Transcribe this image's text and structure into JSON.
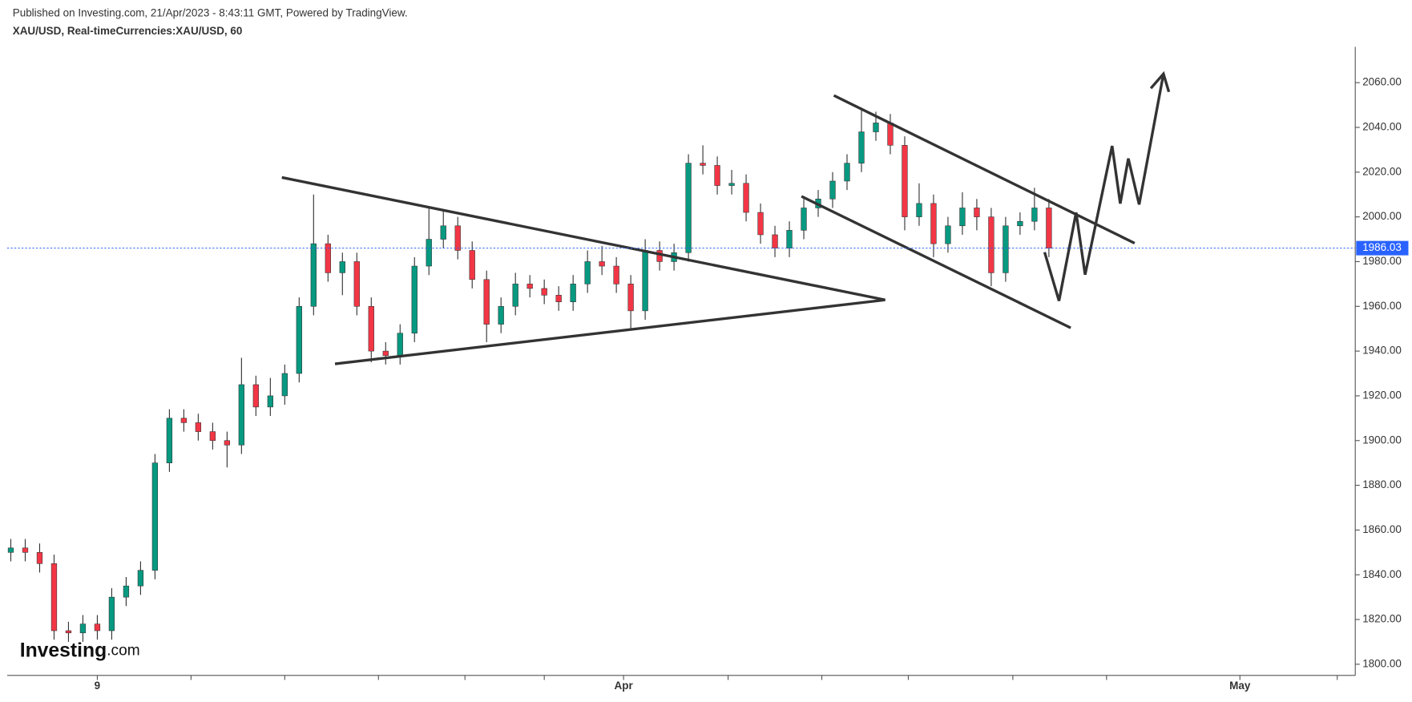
{
  "chart_data": {
    "type": "candlestick",
    "title": "Published on Investing.com, 21/Apr/2023 - 8:43:11 GMT, Powered by TradingView.",
    "subtitle": "XAU/USD, Real-timeCurrencies:XAU/USD, 60",
    "logo": "Investing",
    "logo_suffix": ".com",
    "up_color": "#089981",
    "down_color": "#f23645",
    "x": [
      1,
      5,
      9,
      13,
      17,
      21,
      25,
      29,
      33,
      37,
      41,
      45,
      49,
      53,
      57,
      61,
      65,
      69,
      73,
      77,
      81,
      85,
      89,
      93,
      97,
      101,
      105,
      109,
      113,
      117,
      121,
      125,
      129,
      133,
      137,
      141,
      145,
      149,
      153,
      157,
      161,
      165,
      169,
      173,
      177,
      181,
      185,
      189,
      193,
      197,
      201,
      205,
      209,
      213,
      217,
      221,
      225,
      229,
      233,
      237,
      241,
      245,
      249,
      253,
      257,
      261,
      265,
      269,
      273,
      277,
      281,
      285,
      289
    ],
    "open": [
      1850,
      1852,
      1850,
      1845,
      1815,
      1814,
      1818,
      1815,
      1830,
      1835,
      1842,
      1890,
      1910,
      1908,
      1904,
      1900,
      1898,
      1925,
      1915,
      1920,
      1930,
      1960,
      1988,
      1975,
      1980,
      1960,
      1940,
      1938,
      1948,
      1978,
      1990,
      1996,
      1985,
      1972,
      1952,
      1960,
      1970,
      1968,
      1965,
      1962,
      1970,
      1980,
      1978,
      1970,
      1958,
      1985,
      1980,
      1984,
      2024,
      2023,
      2014,
      2015,
      2002,
      1992,
      1986,
      1994,
      2004,
      2008,
      2016,
      2024,
      2038,
      2042,
      2032,
      2000,
      2006,
      1988,
      1996,
      2004,
      2000,
      1975,
      1996,
      1998,
      2004
    ],
    "high": [
      1856,
      1856,
      1854,
      1849,
      1819,
      1822,
      1822,
      1834,
      1839,
      1846,
      1894,
      1914,
      1914,
      1912,
      1908,
      1904,
      1937,
      1929,
      1928,
      1934,
      1964,
      2010,
      1992,
      1984,
      1984,
      1964,
      1944,
      1952,
      1982,
      2004,
      2003,
      2000,
      1989,
      1976,
      1964,
      1975,
      1974,
      1972,
      1969,
      1974,
      1985,
      1987,
      1982,
      1974,
      1990,
      1989,
      1988,
      2028,
      2032,
      2027,
      2021,
      2019,
      2006,
      1996,
      1998,
      2008,
      2012,
      2020,
      2028,
      2048,
      2047,
      2046,
      2036,
      2015,
      2010,
      2000,
      2011,
      2008,
      2004,
      2000,
      2002,
      2013,
      2008
    ],
    "low": [
      1846,
      1846,
      1841,
      1811,
      1810,
      1810,
      1811,
      1811,
      1826,
      1831,
      1838,
      1886,
      1904,
      1900,
      1896,
      1888,
      1894,
      1911,
      1911,
      1916,
      1926,
      1956,
      1971,
      1965,
      1956,
      1935,
      1934,
      1934,
      1944,
      1974,
      1986,
      1981,
      1968,
      1944,
      1948,
      1956,
      1964,
      1961,
      1958,
      1958,
      1966,
      1974,
      1966,
      1950,
      1954,
      1976,
      1976,
      1980,
      2019,
      2010,
      2010,
      1998,
      1988,
      1982,
      1982,
      1990,
      2000,
      2004,
      2012,
      2020,
      2034,
      2028,
      1994,
      1996,
      1982,
      1984,
      1992,
      1994,
      1969,
      1971,
      1992,
      1994,
      1982
    ],
    "close": [
      1852,
      1850,
      1845,
      1815,
      1814,
      1818,
      1815,
      1830,
      1835,
      1842,
      1890,
      1910,
      1908,
      1904,
      1900,
      1898,
      1925,
      1915,
      1920,
      1930,
      1960,
      1988,
      1975,
      1980,
      1960,
      1940,
      1938,
      1948,
      1978,
      1990,
      1996,
      1985,
      1972,
      1952,
      1960,
      1970,
      1968,
      1965,
      1962,
      1970,
      1980,
      1978,
      1970,
      1958,
      1985,
      1980,
      1984,
      2024,
      2023,
      2014,
      2015,
      2002,
      1992,
      1986,
      1994,
      2004,
      2008,
      2016,
      2024,
      2038,
      2042,
      2032,
      2000,
      2006,
      1988,
      1996,
      2004,
      2000,
      1975,
      1996,
      1998,
      2004,
      1986
    ],
    "last_price": 1986.03,
    "last_price_color": "#2962ff",
    "xlim": [
      0,
      374
    ],
    "xticks": [
      {
        "value": 25,
        "label": "9"
      },
      {
        "value": 171,
        "label": "Apr"
      },
      {
        "value": 342,
        "label": "May"
      }
    ],
    "xminor_ticks": [
      51,
      77,
      103,
      127,
      149,
      200,
      226,
      250,
      279,
      305,
      369
    ],
    "ylim": [
      1795,
      2076
    ],
    "yticks": [
      {
        "value": 1800,
        "label": "1800.00"
      },
      {
        "value": 1820,
        "label": "1820.00"
      },
      {
        "value": 1840,
        "label": "1840.00"
      },
      {
        "value": 1860,
        "label": "1860.00"
      },
      {
        "value": 1880,
        "label": "1880.00"
      },
      {
        "value": 1900,
        "label": "1900.00"
      },
      {
        "value": 1920,
        "label": "1920.00"
      },
      {
        "value": 1940,
        "label": "1940.00"
      },
      {
        "value": 1960,
        "label": "1960.00"
      },
      {
        "value": 1980,
        "label": "1980.00"
      },
      {
        "value": 2000,
        "label": "2000.00"
      },
      {
        "value": 2020,
        "label": "2020.00"
      },
      {
        "value": 2040,
        "label": "2040.00"
      },
      {
        "value": 2060,
        "label": "2060.00"
      }
    ]
  }
}
